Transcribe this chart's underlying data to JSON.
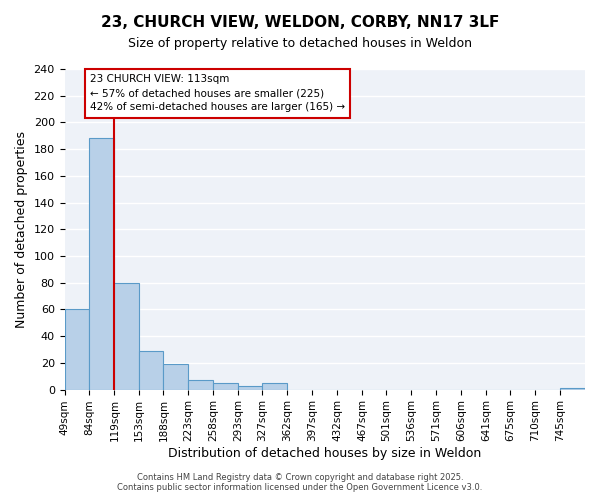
{
  "title": "23, CHURCH VIEW, WELDON, CORBY, NN17 3LF",
  "subtitle": "Size of property relative to detached houses in Weldon",
  "xlabel": "Distribution of detached houses by size in Weldon",
  "ylabel": "Number of detached properties",
  "bar_edges": [
    49,
    84,
    119,
    153,
    188,
    223,
    258,
    293,
    327,
    362,
    397,
    432,
    467,
    501,
    536,
    571,
    606,
    641,
    675,
    710,
    745,
    780
  ],
  "bar_heights": [
    60,
    188,
    80,
    29,
    19,
    7,
    5,
    3,
    5,
    0,
    0,
    0,
    0,
    0,
    0,
    0,
    0,
    0,
    0,
    0,
    1
  ],
  "bar_color": "#b8d0e8",
  "bar_edge_color": "#5a9ac8",
  "vline_x": 119,
  "vline_color": "#cc0000",
  "annotation_title": "23 CHURCH VIEW: 113sqm",
  "annotation_line1": "← 57% of detached houses are smaller (225)",
  "annotation_line2": "42% of semi-detached houses are larger (165) →",
  "annotation_box_color": "#ffffff",
  "annotation_box_edge": "#cc0000",
  "ylim": [
    0,
    240
  ],
  "yticks": [
    0,
    20,
    40,
    60,
    80,
    100,
    120,
    140,
    160,
    180,
    200,
    220,
    240
  ],
  "tick_labels": [
    "49sqm",
    "84sqm",
    "119sqm",
    "153sqm",
    "188sqm",
    "223sqm",
    "258sqm",
    "293sqm",
    "327sqm",
    "362sqm",
    "397sqm",
    "432sqm",
    "467sqm",
    "501sqm",
    "536sqm",
    "571sqm",
    "606sqm",
    "641sqm",
    "675sqm",
    "710sqm",
    "745sqm"
  ],
  "footer1": "Contains HM Land Registry data © Crown copyright and database right 2025.",
  "footer2": "Contains public sector information licensed under the Open Government Licence v3.0.",
  "background_color": "#eef2f8",
  "grid_color": "#ffffff",
  "fig_bg": "#ffffff"
}
